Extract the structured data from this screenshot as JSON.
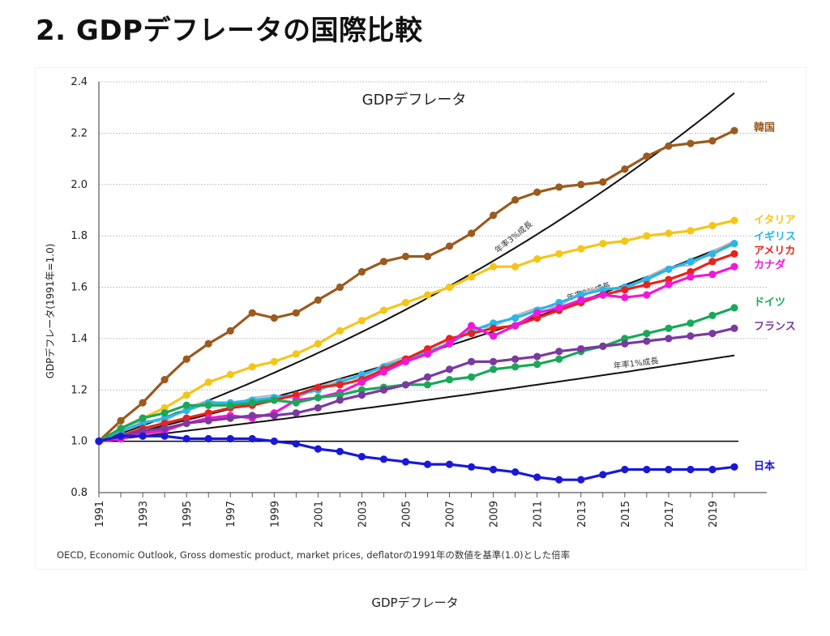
{
  "page": {
    "heading": "2. GDPデフレータの国際比較",
    "caption": "GDPデフレータ"
  },
  "chart_data": {
    "type": "line",
    "title": "GDPデフレータ",
    "ylabel": "GDPデフレータ(1991年=1.0)",
    "xlabel": "",
    "source_note": "OECD, Economic Outlook, Gross domestic product, market prices, deflatorの1991年の数値を基準(1.0)とした倍率",
    "xlim": [
      1991,
      2020
    ],
    "ylim": [
      0.8,
      2.4
    ],
    "yticks": [
      0.8,
      1.0,
      1.2,
      1.4,
      1.6,
      1.8,
      2.0,
      2.2,
      2.4
    ],
    "ytick_labels": [
      "0.8",
      "1.0",
      "1.2",
      "1.4",
      "1.6",
      "1.8",
      "2.0",
      "2.2",
      "2.4"
    ],
    "xticks": [
      1991,
      1993,
      1995,
      1997,
      1999,
      2001,
      2003,
      2005,
      2007,
      2009,
      2011,
      2013,
      2015,
      2017,
      2019
    ],
    "xtick_labels": [
      "1991",
      "1993",
      "1995",
      "1997",
      "1999",
      "2001",
      "2003",
      "2005",
      "2007",
      "2009",
      "2011",
      "2013",
      "2015",
      "2017",
      "2019"
    ],
    "grid": "horizontal dotted",
    "baseline": 1.0,
    "x": [
      1991,
      1992,
      1993,
      1994,
      1995,
      1996,
      1997,
      1998,
      1999,
      2000,
      2001,
      2002,
      2003,
      2004,
      2005,
      2006,
      2007,
      2008,
      2009,
      2010,
      2011,
      2012,
      2013,
      2014,
      2015,
      2016,
      2017,
      2018,
      2019,
      2020
    ],
    "reference_lines": [
      {
        "label": "年率3%成長",
        "rate": 0.03,
        "color": "#111111"
      },
      {
        "label": "年率2%成長",
        "rate": 0.02,
        "color": "#111111"
      },
      {
        "label": "年率1%成長",
        "rate": 0.01,
        "color": "#111111"
      }
    ],
    "series": [
      {
        "name": "韓国",
        "color": "#9b5a1e",
        "values": [
          1.0,
          1.08,
          1.15,
          1.24,
          1.32,
          1.38,
          1.43,
          1.5,
          1.48,
          1.5,
          1.55,
          1.6,
          1.66,
          1.7,
          1.72,
          1.72,
          1.76,
          1.81,
          1.88,
          1.94,
          1.97,
          1.99,
          2.0,
          2.01,
          2.06,
          2.11,
          2.15,
          2.16,
          2.17,
          2.21
        ]
      },
      {
        "name": "イタリア",
        "color": "#f5c518",
        "values": [
          1.0,
          1.05,
          1.09,
          1.13,
          1.18,
          1.23,
          1.26,
          1.29,
          1.31,
          1.34,
          1.38,
          1.43,
          1.47,
          1.51,
          1.54,
          1.57,
          1.6,
          1.64,
          1.68,
          1.68,
          1.71,
          1.73,
          1.75,
          1.77,
          1.78,
          1.8,
          1.81,
          1.82,
          1.84,
          1.86
        ]
      },
      {
        "name": "イギリス",
        "color": "#29b6e8",
        "values": [
          1.0,
          1.04,
          1.07,
          1.09,
          1.12,
          1.15,
          1.15,
          1.16,
          1.17,
          1.18,
          1.2,
          1.23,
          1.26,
          1.29,
          1.32,
          1.35,
          1.38,
          1.43,
          1.46,
          1.48,
          1.51,
          1.54,
          1.57,
          1.59,
          1.6,
          1.63,
          1.67,
          1.7,
          1.73,
          1.77
        ]
      },
      {
        "name": "アメリカ",
        "color": "#e8231e",
        "values": [
          1.0,
          1.02,
          1.05,
          1.07,
          1.09,
          1.11,
          1.13,
          1.14,
          1.16,
          1.18,
          1.21,
          1.22,
          1.24,
          1.28,
          1.32,
          1.36,
          1.4,
          1.42,
          1.44,
          1.45,
          1.48,
          1.51,
          1.54,
          1.57,
          1.59,
          1.61,
          1.63,
          1.66,
          1.7,
          1.73
        ]
      },
      {
        "name": "カナダ",
        "color": "#f018d8",
        "values": [
          1.0,
          1.01,
          1.03,
          1.04,
          1.07,
          1.09,
          1.1,
          1.09,
          1.11,
          1.16,
          1.17,
          1.19,
          1.23,
          1.27,
          1.31,
          1.34,
          1.38,
          1.45,
          1.41,
          1.45,
          1.5,
          1.52,
          1.55,
          1.57,
          1.56,
          1.57,
          1.61,
          1.64,
          1.65,
          1.68
        ]
      },
      {
        "name": "ドイツ",
        "color": "#1aa858",
        "values": [
          1.0,
          1.05,
          1.09,
          1.11,
          1.14,
          1.14,
          1.14,
          1.15,
          1.16,
          1.15,
          1.17,
          1.18,
          1.2,
          1.21,
          1.22,
          1.22,
          1.24,
          1.25,
          1.28,
          1.29,
          1.3,
          1.32,
          1.35,
          1.37,
          1.4,
          1.42,
          1.44,
          1.46,
          1.49,
          1.52
        ]
      },
      {
        "name": "フランス",
        "color": "#7a3aa0",
        "values": [
          1.0,
          1.02,
          1.04,
          1.05,
          1.07,
          1.08,
          1.09,
          1.1,
          1.1,
          1.11,
          1.13,
          1.16,
          1.18,
          1.2,
          1.22,
          1.25,
          1.28,
          1.31,
          1.31,
          1.32,
          1.33,
          1.35,
          1.36,
          1.37,
          1.38,
          1.39,
          1.4,
          1.41,
          1.42,
          1.44
        ]
      },
      {
        "name": "日本",
        "color": "#1a18d8",
        "values": [
          1.0,
          1.02,
          1.02,
          1.02,
          1.01,
          1.01,
          1.01,
          1.01,
          1.0,
          0.99,
          0.97,
          0.96,
          0.94,
          0.93,
          0.92,
          0.91,
          0.91,
          0.9,
          0.89,
          0.88,
          0.86,
          0.85,
          0.85,
          0.87,
          0.89,
          0.89,
          0.89,
          0.89,
          0.89,
          0.9
        ]
      }
    ],
    "faint_gray_series_shown": true
  }
}
